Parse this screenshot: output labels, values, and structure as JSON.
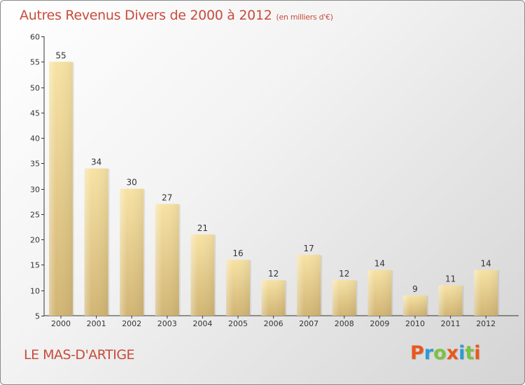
{
  "header": {
    "title": "Autres Revenus Divers de 2000 à 2012",
    "unit": "(en milliers d'€)"
  },
  "footer": {
    "commune": "LE MAS-D'ARTIGE",
    "logo": "Proxiti"
  },
  "colors": {
    "title": "#c84b3c",
    "bar_light": "#f7e2a4",
    "bar_dark": "#d1b574",
    "logo_letters": [
      "#e8581c",
      "#2d9ad6",
      "#7cc242",
      "#e8581c",
      "#2d9ad6",
      "#7cc242",
      "#e8581c"
    ]
  },
  "chart_data": {
    "type": "bar",
    "title": "Autres Revenus Divers de 2000 à 2012",
    "categories": [
      "2000",
      "2001",
      "2002",
      "2003",
      "2004",
      "2005",
      "2006",
      "2007",
      "2008",
      "2009",
      "2010",
      "2011",
      "2012"
    ],
    "values": [
      55,
      34,
      30,
      27,
      21,
      16,
      12,
      17,
      12,
      14,
      9,
      11,
      14
    ],
    "ylim": [
      5,
      60
    ],
    "yticks": [
      5,
      10,
      15,
      20,
      25,
      30,
      35,
      40,
      45,
      50,
      55,
      60
    ],
    "grid": false,
    "legend": "none"
  }
}
